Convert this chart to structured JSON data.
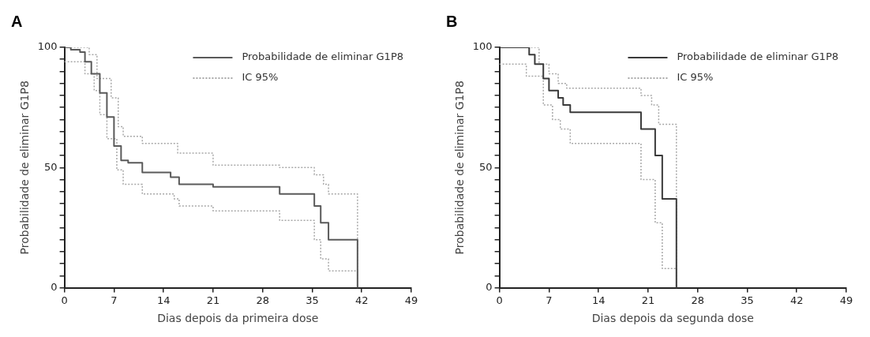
{
  "chart_data": [
    {
      "type": "step",
      "title": "A",
      "xlabel": "Dias depois da primeira dose",
      "ylabel": "Probabilidade de eliminar G1P8",
      "xlim": [
        0,
        49
      ],
      "xticks": [
        0,
        7,
        14,
        21,
        28,
        35,
        42,
        49
      ],
      "ylim": [
        0,
        100
      ],
      "yticks": [
        0,
        {
          "value": 5,
          "label": null
        },
        {
          "value": 10,
          "label": null
        },
        {
          "value": 15,
          "label": null
        },
        {
          "value": 20,
          "label": null
        },
        {
          "value": 25,
          "label": null
        },
        {
          "value": 30,
          "label": null
        },
        {
          "value": 35,
          "label": null
        },
        {
          "value": 40,
          "label": null
        },
        {
          "value": 45,
          "label": null
        },
        50,
        {
          "value": 55,
          "label": null
        },
        {
          "value": 60,
          "label": null
        },
        {
          "value": 65,
          "label": null
        },
        {
          "value": 70,
          "label": null
        },
        {
          "value": 75,
          "label": null
        },
        {
          "value": 80,
          "label": null
        },
        {
          "value": 85,
          "label": null
        },
        {
          "value": 90,
          "label": null
        },
        {
          "value": 95,
          "label": null
        },
        100
      ],
      "grid": false,
      "legend": "top right",
      "series": [
        {
          "name": "Probabilidade de eliminar G1P8",
          "color": "#5a5a5a",
          "line_style": "solid",
          "x": [
            0,
            0.9,
            2.2,
            2.9,
            3.8,
            5,
            6,
            7,
            8,
            9,
            11,
            15,
            16.2,
            21,
            30.4,
            35.3,
            36.2,
            37.3,
            41.4
          ],
          "values": [
            100,
            99,
            98,
            94,
            89,
            81,
            71,
            59,
            53,
            52,
            48,
            46,
            43,
            42,
            39,
            34,
            27,
            20,
            0
          ]
        },
        {
          "name": "IC 95%",
          "color": "#a8a8a8",
          "line_style": "dotted",
          "x": [
            0,
            3.5,
            4.6,
            6.6,
            7.6,
            8.3,
            11,
            16,
            21,
            30.4,
            35.3,
            36.6,
            37.3,
            41.4
          ],
          "values": [
            100,
            97,
            87,
            79,
            67,
            63,
            60,
            56,
            51,
            50,
            47,
            43,
            39,
            0
          ]
        },
        {
          "color": "#a8a8a8",
          "line_style": "dotted",
          "x": [
            0,
            2.9,
            4.2,
            5,
            6,
            7.4,
            8.3,
            11,
            15.5,
            16.2,
            21,
            30.4,
            35.3,
            36.2,
            37.3,
            41.4
          ],
          "values": [
            94,
            89,
            82,
            72,
            62,
            49,
            43,
            39,
            37,
            34,
            32,
            28,
            20,
            12,
            7,
            0
          ]
        }
      ]
    },
    {
      "type": "step",
      "title": "B",
      "xlabel": "Dias depois da segunda dose",
      "ylabel": "Probabilidade de eliminar G1P8",
      "xlim": [
        0,
        49
      ],
      "xticks": [
        0,
        7,
        14,
        21,
        28,
        35,
        42,
        49
      ],
      "ylim": [
        0,
        100
      ],
      "yticks": [
        0,
        {
          "value": 5,
          "label": null
        },
        {
          "value": 10,
          "label": null
        },
        {
          "value": 15,
          "label": null
        },
        {
          "value": 20,
          "label": null
        },
        {
          "value": 25,
          "label": null
        },
        {
          "value": 30,
          "label": null
        },
        {
          "value": 35,
          "label": null
        },
        {
          "value": 40,
          "label": null
        },
        {
          "value": 45,
          "label": null
        },
        50,
        {
          "value": 55,
          "label": null
        },
        {
          "value": 60,
          "label": null
        },
        {
          "value": 65,
          "label": null
        },
        {
          "value": 70,
          "label": null
        },
        {
          "value": 75,
          "label": null
        },
        {
          "value": 80,
          "label": null
        },
        {
          "value": 85,
          "label": null
        },
        {
          "value": 90,
          "label": null
        },
        {
          "value": 95,
          "label": null
        },
        100
      ],
      "grid": false,
      "legend": "top right",
      "series": [
        {
          "name": "Probabilidade de eliminar G1P8",
          "color": "#3a3a3a",
          "line_style": "solid",
          "x": [
            0,
            4.2,
            5,
            6.2,
            7,
            8.3,
            9,
            10,
            20,
            22,
            23,
            25
          ],
          "values": [
            100,
            97,
            93,
            87,
            82,
            79,
            76,
            73,
            66,
            55,
            37,
            0
          ]
        },
        {
          "name": "IC 95%",
          "color": "#a8a8a8",
          "line_style": "dotted",
          "x": [
            0,
            5.6,
            7,
            8.3,
            9.5,
            20,
            21.5,
            22.5,
            25
          ],
          "values": [
            100,
            93,
            89,
            85,
            83,
            80,
            76,
            68,
            0
          ]
        },
        {
          "color": "#a8a8a8",
          "line_style": "dotted",
          "x": [
            0,
            3.8,
            6.2,
            7.5,
            8.6,
            10,
            20,
            22,
            23,
            25
          ],
          "values": [
            93,
            88,
            76,
            70,
            66,
            60,
            45,
            27,
            8,
            0
          ]
        }
      ]
    }
  ]
}
